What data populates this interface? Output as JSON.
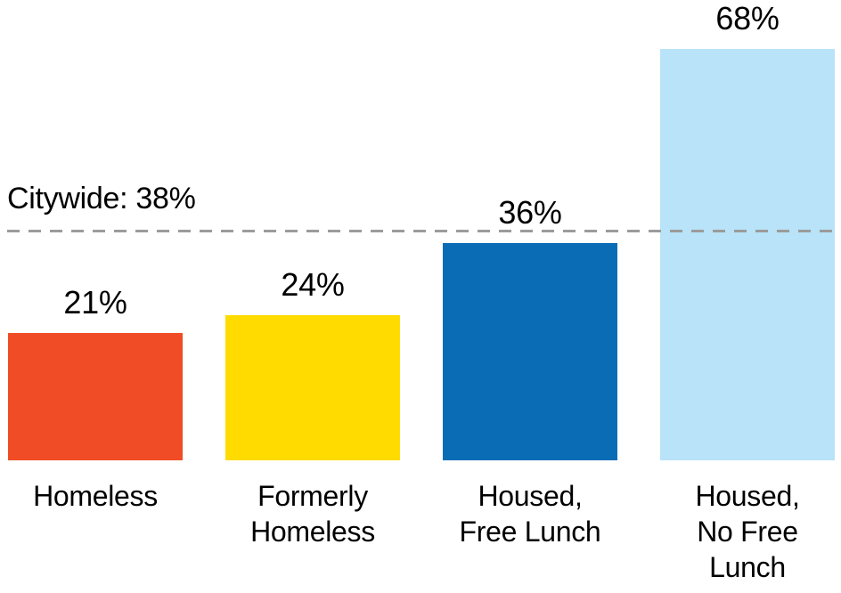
{
  "chart_data": {
    "type": "bar",
    "title": "",
    "xlabel": "",
    "ylabel": "",
    "unit": "%",
    "categories": [
      "Homeless",
      "Formerly\nHomeless",
      "Housed,\nFree Lunch",
      "Housed,\nNo Free\nLunch"
    ],
    "values": [
      21,
      24,
      36,
      68
    ],
    "value_labels": [
      "21%",
      "24%",
      "36%",
      "68%"
    ],
    "bar_colors": [
      "#F04C25",
      "#FFDB00",
      "#0A6CB5",
      "#B8E3F8"
    ],
    "reference_line": {
      "label": "Citywide: 38%",
      "value": 38,
      "color": "#9B9B9B",
      "style": "dashed"
    },
    "ylim": [
      0,
      76
    ],
    "grid": false,
    "legend": null,
    "text_color": "#000000",
    "background": "#FFFFFF"
  }
}
